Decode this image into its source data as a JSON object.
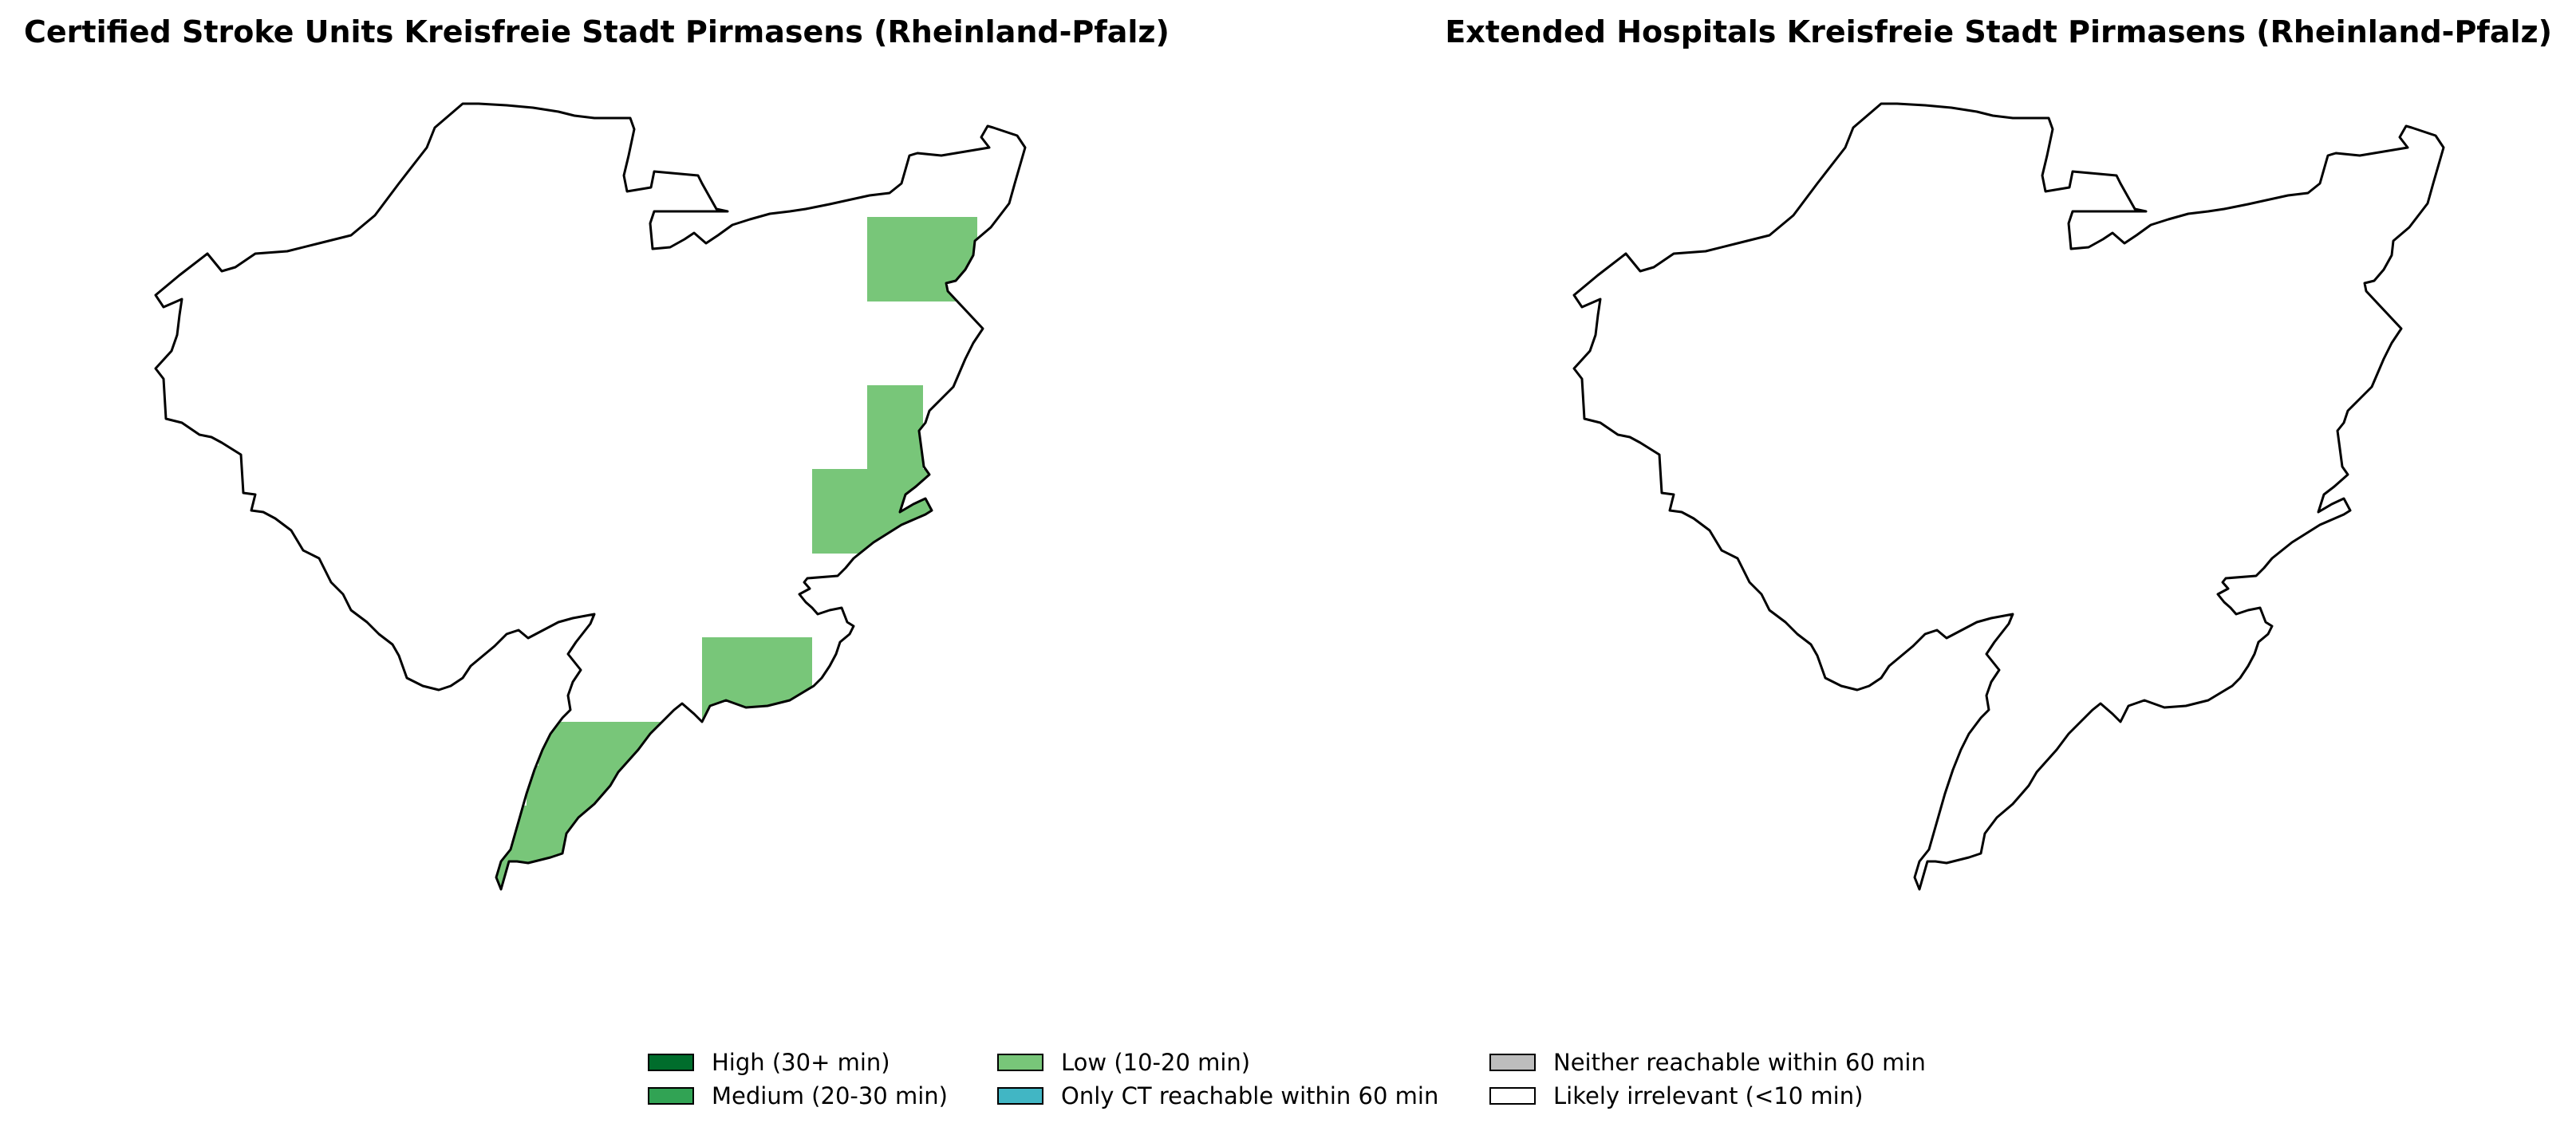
{
  "maps": [
    {
      "title": "Certified Stroke Units Kreisfreie Stadt Pirmasens (Rheinland-Pfalz)",
      "region": "Kreisfreie Stadt Pirmasens",
      "state": "Rheinland-Pfalz",
      "layer": "Certified Stroke Units",
      "zones": [
        "Low (10-20 min)",
        "Likely irrelevant (<10 min)"
      ]
    },
    {
      "title": "Extended Hospitals Kreisfreie Stadt Pirmasens (Rheinland-Pfalz)",
      "region": "Kreisfreie Stadt Pirmasens",
      "state": "Rheinland-Pfalz",
      "layer": "Extended Hospitals",
      "zones": [
        "Likely irrelevant (<10 min)"
      ]
    }
  ],
  "legend": [
    {
      "label": "High (30+ min)",
      "color": "#006d2c"
    },
    {
      "label": "Medium (20-30 min)",
      "color": "#31a354"
    },
    {
      "label": "Low (10-20 min)",
      "color": "#78c679"
    },
    {
      "label": "Only CT reachable within 60 min",
      "color": "#41b6c4"
    },
    {
      "label": "Neither reachable within 60 min",
      "color": "#bdbdbd"
    },
    {
      "label": "Likely irrelevant (<10 min)",
      "color": "#ffffff"
    }
  ],
  "colors": {
    "outline": "#000000",
    "background": "#ffffff"
  }
}
